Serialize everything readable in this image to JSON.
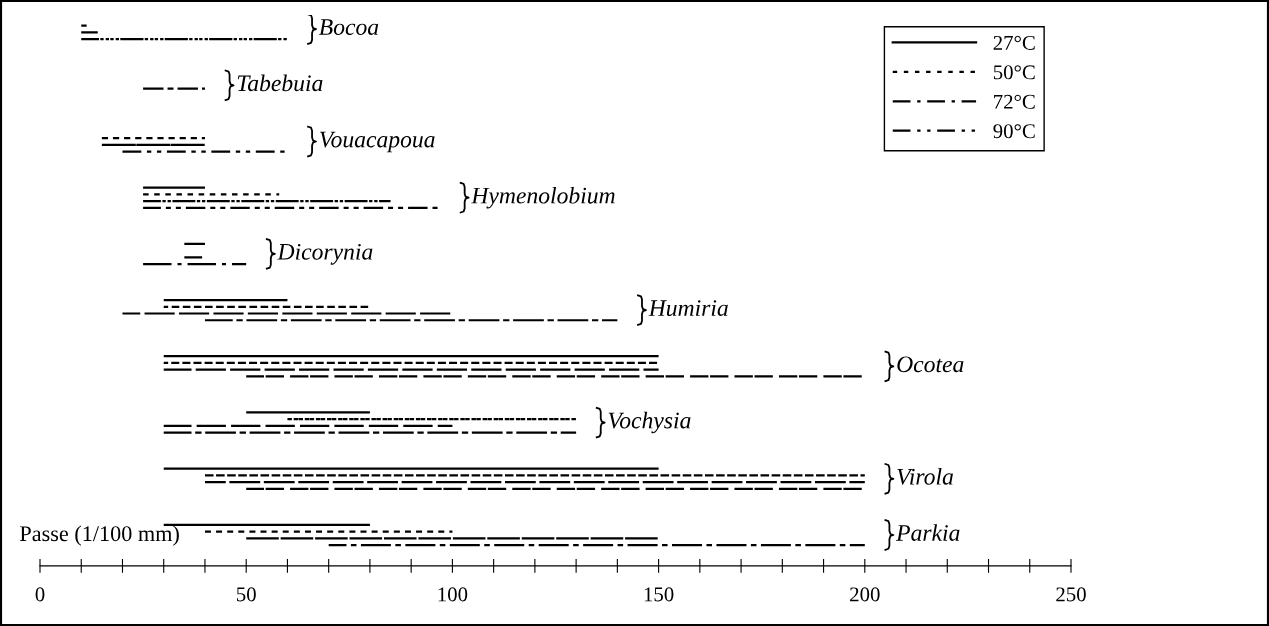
{
  "chart_data": {
    "type": "bar",
    "orientation": "horizontal",
    "xlabel": "Passe (1/100 mm)",
    "categories": [
      "Bocoa",
      "Tabebuia",
      "Vouacapoua",
      "Hymenolobium",
      "Dicorynia",
      "Humiria",
      "Ocotea",
      "Vochysia",
      "Virola",
      "Parkia"
    ],
    "series": [
      {
        "name": "27°C",
        "color": "#000000",
        "line_style": "solid",
        "base": [
          null,
          null,
          null,
          25,
          35,
          30,
          30,
          50,
          30,
          30
        ],
        "values": [
          null,
          null,
          null,
          15,
          5,
          30,
          120,
          30,
          120,
          50
        ]
      },
      {
        "name": "50°C",
        "color": "#000000",
        "line_style": "dotted",
        "base": [
          10,
          null,
          15,
          25,
          null,
          30,
          30,
          60,
          40,
          40
        ],
        "values": [
          2,
          null,
          25,
          33,
          null,
          50,
          120,
          70,
          160,
          60
        ]
      },
      {
        "name": "72°C",
        "color": "#000000",
        "line_style": "dashdot",
        "base": [
          10,
          25,
          15,
          25,
          35,
          20,
          30,
          30,
          40,
          50
        ],
        "values": [
          4,
          15,
          25,
          60,
          5,
          80,
          120,
          70,
          160,
          100
        ]
      },
      {
        "name": "90°C",
        "color": "#000000",
        "line_style": "dashdotdot",
        "base": [
          10,
          null,
          20,
          25,
          25,
          40,
          50,
          30,
          50,
          70
        ],
        "values": [
          50,
          null,
          40,
          72,
          25,
          100,
          150,
          100,
          150,
          130
        ]
      }
    ],
    "xlim": [
      0,
      250
    ],
    "xticks": [
      0,
      {
        "value": 10,
        "label": null
      },
      {
        "value": 20,
        "label": null
      },
      {
        "value": 30,
        "label": null
      },
      {
        "value": 40,
        "label": null
      },
      50,
      {
        "value": 60,
        "label": null
      },
      {
        "value": 70,
        "label": null
      },
      {
        "value": 80,
        "label": null
      },
      {
        "value": 90,
        "label": null
      },
      100,
      {
        "value": 110,
        "label": null
      },
      {
        "value": 120,
        "label": null
      },
      {
        "value": 130,
        "label": null
      },
      {
        "value": 140,
        "label": null
      },
      150,
      {
        "value": 160,
        "label": null
      },
      {
        "value": 170,
        "label": null
      },
      {
        "value": 180,
        "label": null
      },
      {
        "value": 190,
        "label": null
      },
      200,
      {
        "value": 210,
        "label": null
      },
      {
        "value": 220,
        "label": null
      },
      {
        "value": 230,
        "label": null
      },
      {
        "value": 240,
        "label": null
      },
      250
    ],
    "legend": "top right",
    "grid": false
  }
}
